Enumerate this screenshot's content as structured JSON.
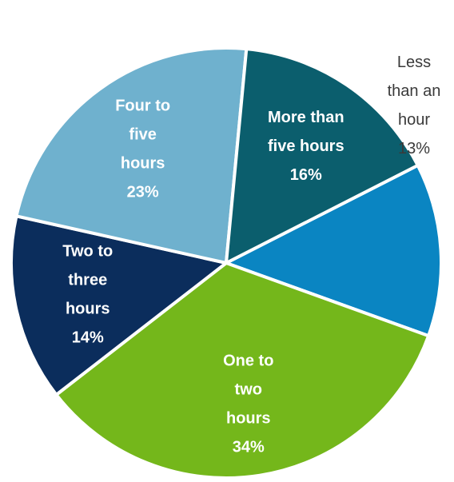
{
  "chart_data": {
    "type": "pie",
    "title": "",
    "slices": [
      {
        "name": "Less than an hour",
        "label_lines": [
          "Less",
          "than an",
          "hour"
        ],
        "value": 13,
        "value_label": "13%",
        "color": "#0a85c2",
        "label_position": "outside"
      },
      {
        "name": "One to two hours",
        "label_lines": [
          "One to",
          "two",
          "hours"
        ],
        "value": 34,
        "value_label": "34%",
        "color": "#74b71b",
        "label_position": "inside"
      },
      {
        "name": "Two to three hours",
        "label_lines": [
          "Two to",
          "three",
          "hours"
        ],
        "value": 14,
        "value_label": "14%",
        "color": "#0b2d5c",
        "label_position": "inside"
      },
      {
        "name": "Four to five hours",
        "label_lines": [
          "Four to",
          "five",
          "hours"
        ],
        "value": 23,
        "value_label": "23%",
        "color": "#6fb1ce",
        "label_position": "inside"
      },
      {
        "name": "More than five hours",
        "label_lines": [
          "More than",
          "five hours"
        ],
        "value": 16,
        "value_label": "16%",
        "color": "#0b5e6d",
        "label_position": "inside"
      }
    ]
  }
}
